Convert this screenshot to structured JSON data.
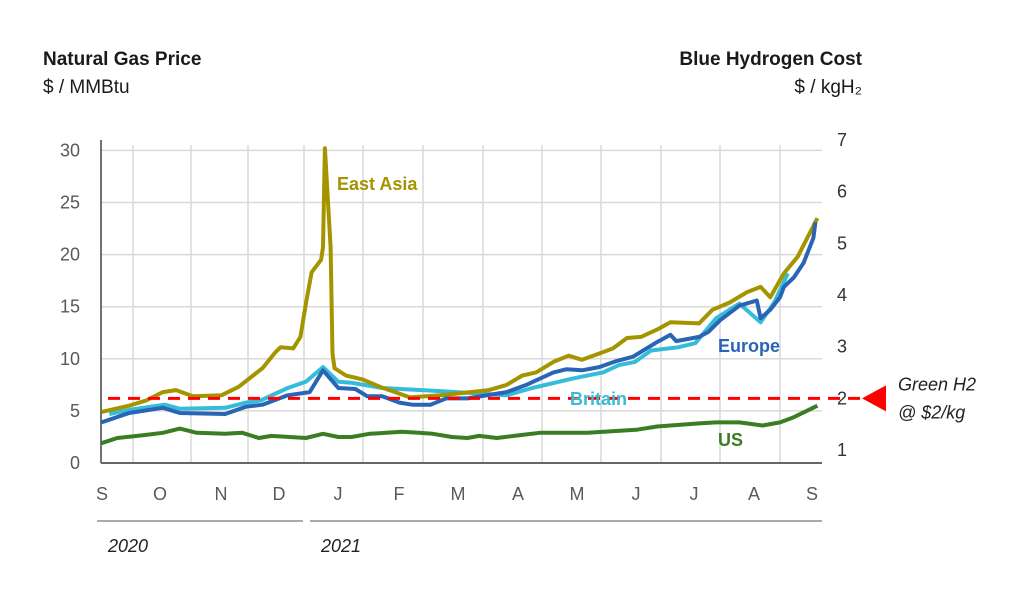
{
  "chart_data": {
    "type": "line",
    "left_axis": {
      "title": "Natural Gas Price",
      "unit": "$ / MMBtu",
      "ticks": [
        0,
        5,
        10,
        15,
        20,
        25,
        30
      ],
      "ylim": [
        0,
        31
      ]
    },
    "right_axis": {
      "title": "Blue Hydrogen Cost",
      "unit": "$ / kgH₂",
      "ticks": [
        1,
        2,
        3,
        4,
        5,
        6,
        7
      ],
      "ylim": [
        0.75,
        7.0
      ]
    },
    "x_axis": {
      "month_ticks": [
        "S",
        "O",
        "N",
        "D",
        "J",
        "F",
        "M",
        "A",
        "M",
        "J",
        "J",
        "A",
        "S"
      ],
      "years": [
        "2020",
        "2021"
      ],
      "xlim": [
        "2020-09-15",
        "2021-09-21"
      ]
    },
    "grid": true,
    "colors": {
      "East Asia": "#A39400",
      "Europe": "#2A65B5",
      "Britain": "#35BCD8",
      "US": "#3A7D22",
      "reference": "#FF0000",
      "grid": "#D9D9D9"
    },
    "series": [
      {
        "name": "Britain",
        "points": [
          [
            "2020-09-19",
            4.7
          ],
          [
            "2020-09-29",
            5.1
          ],
          [
            "2020-10-18",
            5.6
          ],
          [
            "2020-10-26",
            5.2
          ],
          [
            "2020-11-19",
            5.3
          ],
          [
            "2020-11-30",
            5.8
          ],
          [
            "2020-12-08",
            6.0
          ],
          [
            "2020-12-23",
            7.2
          ],
          [
            "2021-01-02",
            7.8
          ],
          [
            "2021-01-11",
            9.2
          ],
          [
            "2021-01-19",
            7.8
          ],
          [
            "2021-01-26",
            7.7
          ],
          [
            "2021-02-10",
            7.2
          ],
          [
            "2021-03-10",
            6.9
          ],
          [
            "2021-04-13",
            6.5
          ],
          [
            "2021-04-26",
            7.2
          ],
          [
            "2021-05-17",
            8.1
          ],
          [
            "2021-06-02",
            8.7
          ],
          [
            "2021-06-10",
            9.4
          ],
          [
            "2021-06-18",
            9.7
          ],
          [
            "2021-06-26",
            10.8
          ],
          [
            "2021-07-10",
            11.1
          ],
          [
            "2021-07-19",
            11.5
          ],
          [
            "2021-07-30",
            13.9
          ],
          [
            "2021-08-11",
            15.3
          ],
          [
            "2021-08-22",
            13.5
          ],
          [
            "2021-08-29",
            15.4
          ],
          [
            "2021-09-05",
            18.2
          ]
        ]
      },
      {
        "name": "East Asia",
        "points": [
          [
            "2020-09-15",
            4.9
          ],
          [
            "2020-09-29",
            5.5
          ],
          [
            "2020-10-08",
            6.0
          ],
          [
            "2020-10-17",
            6.8
          ],
          [
            "2020-10-24",
            7.0
          ],
          [
            "2020-11-02",
            6.4
          ],
          [
            "2020-11-17",
            6.5
          ],
          [
            "2020-11-26",
            7.3
          ],
          [
            "2020-12-09",
            9.1
          ],
          [
            "2020-12-16",
            10.6
          ],
          [
            "2020-12-19",
            11.1
          ],
          [
            "2020-12-26",
            11.0
          ],
          [
            "2020-12-30",
            12.1
          ],
          [
            "2021-01-02",
            15.3
          ],
          [
            "2021-01-05",
            18.3
          ],
          [
            "2021-01-10",
            19.5
          ],
          [
            "2021-01-11",
            20.7
          ],
          [
            "2021-01-12",
            30.2
          ],
          [
            "2021-01-15",
            20.7
          ],
          [
            "2021-01-16",
            10.5
          ],
          [
            "2021-01-17",
            9.1
          ],
          [
            "2021-01-23",
            8.4
          ],
          [
            "2021-02-01",
            8.0
          ],
          [
            "2021-02-09",
            7.3
          ],
          [
            "2021-02-23",
            6.3
          ],
          [
            "2021-03-10",
            6.5
          ],
          [
            "2021-03-20",
            6.7
          ],
          [
            "2021-04-04",
            7.0
          ],
          [
            "2021-04-13",
            7.5
          ],
          [
            "2021-04-21",
            8.4
          ],
          [
            "2021-04-28",
            8.7
          ],
          [
            "2021-05-07",
            9.7
          ],
          [
            "2021-05-15",
            10.3
          ],
          [
            "2021-05-22",
            9.9
          ],
          [
            "2021-05-31",
            10.5
          ],
          [
            "2021-06-07",
            11.0
          ],
          [
            "2021-06-14",
            12.0
          ],
          [
            "2021-06-21",
            12.1
          ],
          [
            "2021-06-29",
            12.8
          ],
          [
            "2021-07-06",
            13.5
          ],
          [
            "2021-07-21",
            13.4
          ],
          [
            "2021-07-28",
            14.7
          ],
          [
            "2021-08-06",
            15.4
          ],
          [
            "2021-08-15",
            16.4
          ],
          [
            "2021-08-22",
            16.9
          ],
          [
            "2021-08-27",
            15.9
          ],
          [
            "2021-09-03",
            18.2
          ],
          [
            "2021-09-10",
            19.8
          ],
          [
            "2021-09-20",
            23.5
          ]
        ]
      },
      {
        "name": "Europe",
        "points": [
          [
            "2020-09-15",
            3.9
          ],
          [
            "2020-09-29",
            4.8
          ],
          [
            "2020-10-17",
            5.3
          ],
          [
            "2020-10-26",
            4.8
          ],
          [
            "2020-11-19",
            4.7
          ],
          [
            "2020-11-30",
            5.4
          ],
          [
            "2020-12-09",
            5.6
          ],
          [
            "2020-12-23",
            6.5
          ],
          [
            "2021-01-04",
            6.8
          ],
          [
            "2021-01-11",
            8.9
          ],
          [
            "2021-01-19",
            7.2
          ],
          [
            "2021-01-28",
            7.1
          ],
          [
            "2021-02-03",
            6.4
          ],
          [
            "2021-02-10",
            6.4
          ],
          [
            "2021-02-18",
            5.8
          ],
          [
            "2021-02-24",
            5.6
          ],
          [
            "2021-03-05",
            5.6
          ],
          [
            "2021-03-13",
            6.2
          ],
          [
            "2021-03-24",
            6.2
          ],
          [
            "2021-04-13",
            6.8
          ],
          [
            "2021-04-23",
            7.5
          ],
          [
            "2021-05-07",
            8.7
          ],
          [
            "2021-05-14",
            9.0
          ],
          [
            "2021-05-22",
            8.9
          ],
          [
            "2021-05-31",
            9.2
          ],
          [
            "2021-06-09",
            9.8
          ],
          [
            "2021-06-17",
            10.2
          ],
          [
            "2021-06-29",
            11.6
          ],
          [
            "2021-07-06",
            12.3
          ],
          [
            "2021-07-09",
            11.7
          ],
          [
            "2021-07-21",
            12.1
          ],
          [
            "2021-07-26",
            12.6
          ],
          [
            "2021-08-01",
            13.7
          ],
          [
            "2021-08-11",
            15.1
          ],
          [
            "2021-08-20",
            15.6
          ],
          [
            "2021-08-22",
            13.9
          ],
          [
            "2021-08-27",
            14.7
          ],
          [
            "2021-09-01",
            15.9
          ],
          [
            "2021-09-03",
            16.9
          ],
          [
            "2021-09-08",
            17.8
          ],
          [
            "2021-09-13",
            19.2
          ],
          [
            "2021-09-18",
            21.6
          ],
          [
            "2021-09-19",
            23.1
          ]
        ]
      },
      {
        "name": "US",
        "points": [
          [
            "2020-09-15",
            1.9
          ],
          [
            "2020-09-23",
            2.4
          ],
          [
            "2020-10-08",
            2.7
          ],
          [
            "2020-10-17",
            2.9
          ],
          [
            "2020-10-26",
            3.3
          ],
          [
            "2020-11-04",
            2.9
          ],
          [
            "2020-11-19",
            2.8
          ],
          [
            "2020-11-28",
            2.9
          ],
          [
            "2020-12-07",
            2.4
          ],
          [
            "2020-12-14",
            2.6
          ],
          [
            "2021-01-02",
            2.4
          ],
          [
            "2021-01-11",
            2.8
          ],
          [
            "2021-01-19",
            2.5
          ],
          [
            "2021-01-26",
            2.5
          ],
          [
            "2021-02-04",
            2.8
          ],
          [
            "2021-02-12",
            2.9
          ],
          [
            "2021-02-19",
            3.0
          ],
          [
            "2021-02-27",
            2.9
          ],
          [
            "2021-03-06",
            2.8
          ],
          [
            "2021-03-16",
            2.5
          ],
          [
            "2021-03-24",
            2.4
          ],
          [
            "2021-03-30",
            2.6
          ],
          [
            "2021-04-08",
            2.4
          ],
          [
            "2021-04-21",
            2.7
          ],
          [
            "2021-04-30",
            2.9
          ],
          [
            "2021-05-25",
            2.9
          ],
          [
            "2021-06-19",
            3.2
          ],
          [
            "2021-06-29",
            3.5
          ],
          [
            "2021-07-21",
            3.8
          ],
          [
            "2021-07-30",
            3.9
          ],
          [
            "2021-08-11",
            3.9
          ],
          [
            "2021-08-23",
            3.6
          ],
          [
            "2021-09-01",
            3.9
          ],
          [
            "2021-09-08",
            4.4
          ],
          [
            "2021-09-20",
            5.5
          ]
        ]
      }
    ],
    "reference_line": {
      "axis": "right",
      "value": 2.0,
      "style": "dashed"
    },
    "annotations": {
      "reference_label_line1": "Green H2",
      "reference_label_line2": "@ $2/kg"
    }
  }
}
